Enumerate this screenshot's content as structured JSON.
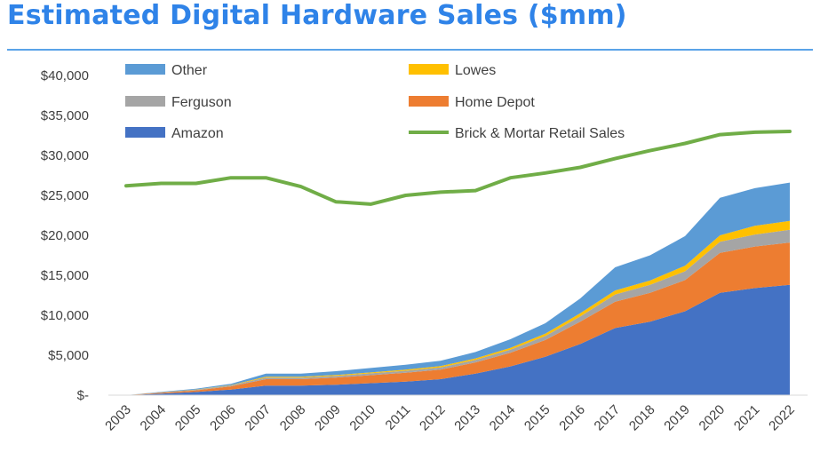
{
  "title": "Estimated Digital Hardware Sales ($mm)",
  "colors": {
    "title": "#2f83e8",
    "amazon": "#4472c4",
    "home_depot": "#ed7d31",
    "ferguson": "#a5a5a5",
    "lowes": "#ffc000",
    "other": "#5b9bd5",
    "brick": "#70ad47"
  },
  "chart_data": {
    "type": "area",
    "stacked": true,
    "title": "Estimated Digital Hardware Sales ($mm)",
    "x": [
      "2003",
      "2004",
      "2005",
      "2006",
      "2007",
      "2008",
      "2009",
      "2010",
      "2011",
      "2012",
      "2013",
      "2014",
      "2015",
      "2016",
      "2017",
      "2018",
      "2019",
      "2020",
      "2021",
      "2022"
    ],
    "ylim": [
      0,
      40000
    ],
    "yticks": [
      {
        "value": 0,
        "label": "$-"
      },
      {
        "value": 5000,
        "label": "$5,000"
      },
      {
        "value": 10000,
        "label": "$10,000"
      },
      {
        "value": 15000,
        "label": "$15,000"
      },
      {
        "value": 20000,
        "label": "$20,000"
      },
      {
        "value": 25000,
        "label": "$25,000"
      },
      {
        "value": 30000,
        "label": "$30,000"
      },
      {
        "value": 35000,
        "label": "$35,000"
      },
      {
        "value": 40000,
        "label": "$40,000"
      }
    ],
    "legend_position": "top",
    "series": [
      {
        "name": "Amazon",
        "type": "area",
        "color_key": "amazon",
        "values": [
          0,
          200,
          400,
          700,
          1200,
          1200,
          1300,
          1500,
          1700,
          2000,
          2700,
          3600,
          4800,
          6400,
          8400,
          9200,
          10500,
          12800,
          13400,
          13800
        ]
      },
      {
        "name": "Home Depot",
        "type": "area",
        "color_key": "home_depot",
        "values": [
          0,
          100,
          200,
          400,
          800,
          800,
          900,
          1000,
          1100,
          1200,
          1400,
          1700,
          2100,
          2800,
          3300,
          3600,
          3900,
          5000,
          5200,
          5300
        ]
      },
      {
        "name": "Ferguson",
        "type": "area",
        "color_key": "ferguson",
        "values": [
          0,
          50,
          80,
          120,
          200,
          200,
          210,
          230,
          260,
          280,
          320,
          400,
          500,
          650,
          900,
          1000,
          1100,
          1400,
          1500,
          1600
        ]
      },
      {
        "name": "Lowes",
        "type": "area",
        "color_key": "lowes",
        "values": [
          0,
          20,
          30,
          50,
          100,
          100,
          110,
          120,
          130,
          150,
          180,
          220,
          300,
          400,
          500,
          550,
          700,
          800,
          1100,
          1100
        ]
      },
      {
        "name": "Other",
        "type": "area",
        "color_key": "other",
        "values": [
          0,
          50,
          100,
          150,
          400,
          400,
          480,
          550,
          610,
          670,
          800,
          1080,
          1300,
          1850,
          2900,
          3150,
          3700,
          4700,
          4700,
          4800
        ]
      },
      {
        "name": "Brick & Mortar Retail Sales",
        "type": "line",
        "color_key": "brick",
        "values": [
          26200,
          26500,
          26500,
          27200,
          27200,
          26100,
          24200,
          23900,
          25000,
          25400,
          25600,
          27200,
          27800,
          28500,
          29600,
          30600,
          31500,
          32600,
          32900,
          33000
        ]
      }
    ]
  }
}
